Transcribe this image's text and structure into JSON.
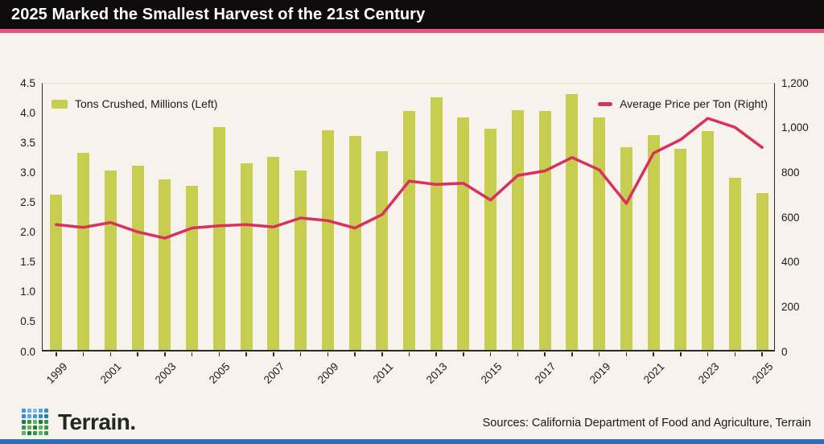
{
  "header": {
    "title": "2025 Marked the Smallest Harvest of the 21st Century"
  },
  "chart_data": {
    "type": "combo-bar-line",
    "title": "2025 Marked the Smallest Harvest of the 21st Century",
    "categories": [
      1999,
      2000,
      2001,
      2002,
      2003,
      2004,
      2005,
      2006,
      2007,
      2008,
      2009,
      2010,
      2011,
      2012,
      2013,
      2014,
      2015,
      2016,
      2017,
      2018,
      2019,
      2020,
      2021,
      2022,
      2023,
      2024,
      2025
    ],
    "x_labeled_every": 2,
    "series": [
      {
        "name": "Tons Crushed, Millions (Left)",
        "type": "bar",
        "axis": "left",
        "color": "#c6cd4f",
        "values": [
          2.6,
          3.3,
          3.0,
          3.08,
          2.85,
          2.75,
          3.73,
          3.12,
          3.23,
          3.0,
          3.68,
          3.58,
          3.33,
          4.0,
          4.23,
          3.89,
          3.7,
          4.02,
          4.0,
          4.28,
          3.9,
          3.4,
          3.6,
          3.37,
          3.66,
          2.88,
          2.63
        ]
      },
      {
        "name": "Average Price per Ton (Right)",
        "type": "line",
        "axis": "right",
        "color": "#d8305f",
        "values": [
          570,
          558,
          580,
          538,
          510,
          555,
          565,
          570,
          560,
          600,
          588,
          555,
          615,
          765,
          750,
          755,
          680,
          790,
          810,
          870,
          815,
          665,
          890,
          950,
          1045,
          1005,
          915
        ]
      }
    ],
    "left_axis": {
      "min": 0,
      "max": 4.5,
      "step": 0.5,
      "tick_labels": [
        "0.0",
        "0.5",
        "1.0",
        "1.5",
        "2.0",
        "2.5",
        "3.0",
        "3.5",
        "4.0",
        "4.5"
      ]
    },
    "right_axis": {
      "min": 0,
      "max": 1200,
      "step": 200,
      "tick_labels": [
        "0",
        "200",
        "400",
        "600",
        "800",
        "1,000",
        "1,200"
      ]
    },
    "grid": "off",
    "legend_position": "top-inside"
  },
  "footer": {
    "brand": "Terrain.",
    "sources": "Sources: California Department of Food and Agriculture, Terrain",
    "accent_bar_color": "#2d6fb8",
    "title_underline_color": "#ec5289",
    "logo_colors": [
      "#3d9bd9",
      "#63b5e8",
      "#7cc4ef",
      "#4fa9e0",
      "#2e8fd0",
      "#2e8fd0",
      "#4fa9e0",
      "#3d9bd9",
      "#2e8fd0",
      "#1f7ec4",
      "#1e7a3e",
      "#2f9a4c",
      "#58b85c",
      "#1e7a3e",
      "#2f9a4c",
      "#2f9a4c",
      "#58b85c",
      "#1e7a3e",
      "#58b85c",
      "#2f9a4c",
      "#58b85c",
      "#1e7a3e",
      "#2f9a4c",
      "#58b85c",
      "#2f9a4c"
    ]
  }
}
